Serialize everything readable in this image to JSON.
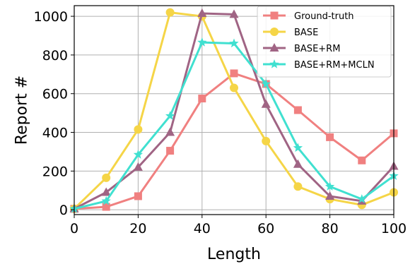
{
  "chart_data": {
    "type": "line",
    "title": "",
    "xlabel": "Length",
    "ylabel": "Report #",
    "xlim": [
      0,
      100
    ],
    "ylim": [
      -25,
      1055
    ],
    "grid": true,
    "legend_position": "top-right",
    "x_ticks": [
      "0",
      "20",
      "40",
      "60",
      "80",
      "100"
    ],
    "y_ticks": [
      "0",
      "200",
      "400",
      "600",
      "800",
      "1000"
    ],
    "x_tick_values": [
      0,
      20,
      40,
      60,
      80,
      100
    ],
    "y_tick_values": [
      0,
      200,
      400,
      600,
      800,
      1000
    ],
    "x": [
      0,
      10,
      20,
      30,
      40,
      50,
      60,
      70,
      80,
      90,
      100
    ],
    "series": [
      {
        "name": "Ground-truth",
        "color": "#f08080",
        "marker": "square",
        "values": [
          5,
          15,
          70,
          305,
          575,
          705,
          650,
          515,
          375,
          255,
          395
        ]
      },
      {
        "name": "BASE",
        "color": "#f5d547",
        "marker": "circle",
        "values": [
          5,
          165,
          415,
          1020,
          1000,
          630,
          355,
          120,
          55,
          25,
          90
        ]
      },
      {
        "name": "BASE+RM",
        "color": "#a06484",
        "marker": "triangle",
        "values": [
          5,
          90,
          220,
          400,
          1015,
          1010,
          545,
          235,
          70,
          45,
          225
        ]
      },
      {
        "name": "BASE+RM+MCLN",
        "color": "#40e0d0",
        "marker": "star",
        "values": [
          5,
          45,
          285,
          485,
          865,
          860,
          650,
          320,
          120,
          55,
          175
        ]
      }
    ]
  }
}
